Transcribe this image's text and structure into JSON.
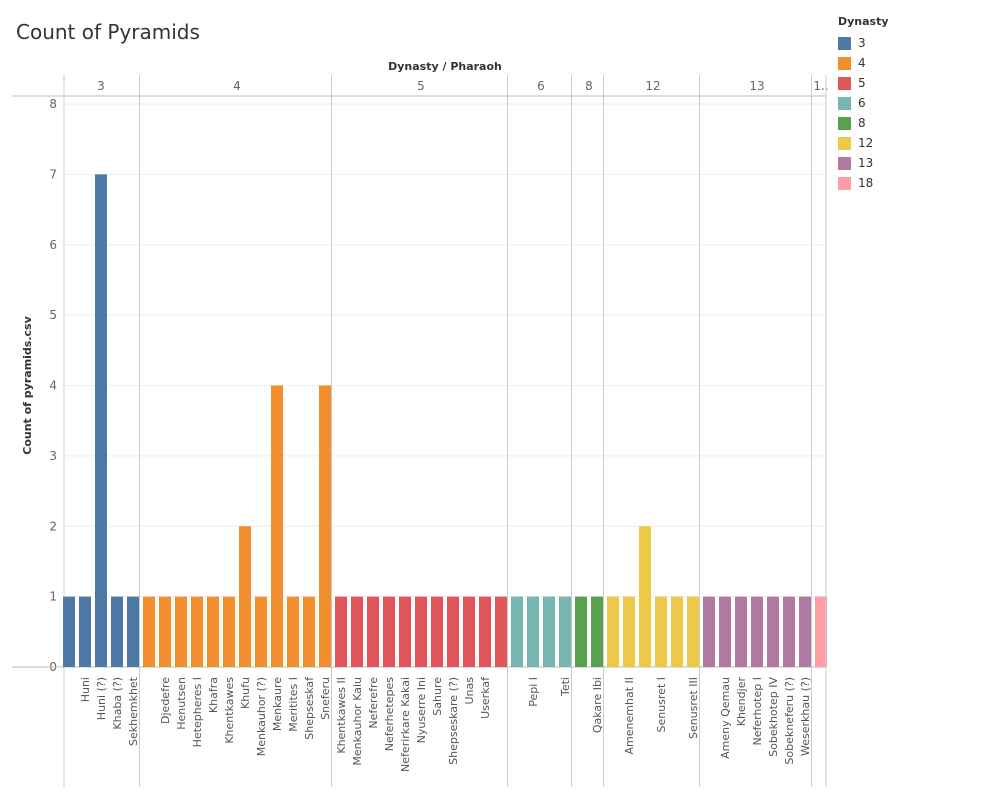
{
  "chart_data": {
    "type": "bar",
    "title": "Count of Pyramids",
    "ylabel": "Count of pyramids.csv",
    "column_header": "Dynasty / Pharaoh",
    "ylim": [
      0,
      8
    ],
    "y_ticks": [
      0,
      1,
      2,
      3,
      4,
      5,
      6,
      7,
      8
    ],
    "groups": [
      {
        "label": "3",
        "color": "#4e79a7",
        "bars": [
          {
            "name": "",
            "value": 1
          },
          {
            "name": "Huni",
            "value": 1
          },
          {
            "name": "Huni (?)",
            "value": 7
          },
          {
            "name": "Khaba (?)",
            "value": 1
          },
          {
            "name": "Sekhemkhet",
            "value": 1
          }
        ]
      },
      {
        "label": "4",
        "color": "#f28e2b",
        "bars": [
          {
            "name": "",
            "value": 1
          },
          {
            "name": "Djedefre",
            "value": 1
          },
          {
            "name": "Henutsen",
            "value": 1
          },
          {
            "name": "Hetepheres I",
            "value": 1
          },
          {
            "name": "Khafra",
            "value": 1
          },
          {
            "name": "Khentkawes",
            "value": 1
          },
          {
            "name": "Khufu",
            "value": 2
          },
          {
            "name": "Menkauhor (?)",
            "value": 1
          },
          {
            "name": "Menkaure",
            "value": 4
          },
          {
            "name": "Meritites I",
            "value": 1
          },
          {
            "name": "Shepseskaf",
            "value": 1
          },
          {
            "name": "Sneferu",
            "value": 4
          }
        ]
      },
      {
        "label": "5",
        "color": "#e15759",
        "bars": [
          {
            "name": "Khentkawes II",
            "value": 1
          },
          {
            "name": "Menkauhor Kaiu",
            "value": 1
          },
          {
            "name": "Neferefre",
            "value": 1
          },
          {
            "name": "Neferhetepes",
            "value": 1
          },
          {
            "name": "Neferirkare Kakai",
            "value": 1
          },
          {
            "name": "Nyuserre Ini",
            "value": 1
          },
          {
            "name": "Sahure",
            "value": 1
          },
          {
            "name": "Shepseskare (?)",
            "value": 1
          },
          {
            "name": "Unas",
            "value": 1
          },
          {
            "name": "Userkaf",
            "value": 1
          },
          {
            "name": "",
            "value": 1
          }
        ]
      },
      {
        "label": "6",
        "color": "#76b7b2",
        "bars": [
          {
            "name": "",
            "value": 1
          },
          {
            "name": "Pepi I",
            "value": 1
          },
          {
            "name": "",
            "value": 1
          },
          {
            "name": "Teti",
            "value": 1
          }
        ]
      },
      {
        "label": "8",
        "color": "#59a14f",
        "bars": [
          {
            "name": "",
            "value": 1
          },
          {
            "name": "Qakare Ibi",
            "value": 1
          }
        ]
      },
      {
        "label": "12",
        "color": "#edc948",
        "bars": [
          {
            "name": "",
            "value": 1
          },
          {
            "name": "Amenemhat II",
            "value": 1
          },
          {
            "name": "",
            "value": 2
          },
          {
            "name": "Senusret I",
            "value": 1
          },
          {
            "name": "",
            "value": 1
          },
          {
            "name": "Senusret III",
            "value": 1
          }
        ]
      },
      {
        "label": "13",
        "color": "#b07aa1",
        "bars": [
          {
            "name": "",
            "value": 1
          },
          {
            "name": "Ameny Qemau",
            "value": 1
          },
          {
            "name": "Khendjer",
            "value": 1
          },
          {
            "name": "Neferhotep I",
            "value": 1
          },
          {
            "name": "Sobekhotep IV",
            "value": 1
          },
          {
            "name": "Sobekneferu (?)",
            "value": 1
          },
          {
            "name": "Weserkhau (?)",
            "value": 1
          }
        ]
      },
      {
        "label": "1..",
        "color": "#ff9da7",
        "bars": [
          {
            "name": "",
            "value": 1
          }
        ]
      }
    ],
    "legend": {
      "title": "Dynasty",
      "placement": "top-right",
      "items": [
        {
          "label": "3",
          "color": "#4e79a7"
        },
        {
          "label": "4",
          "color": "#f28e2b"
        },
        {
          "label": "5",
          "color": "#e15759"
        },
        {
          "label": "6",
          "color": "#76b7b2"
        },
        {
          "label": "8",
          "color": "#59a14f"
        },
        {
          "label": "12",
          "color": "#edc948"
        },
        {
          "label": "13",
          "color": "#b07aa1"
        },
        {
          "label": "18",
          "color": "#ff9da7"
        }
      ]
    }
  }
}
